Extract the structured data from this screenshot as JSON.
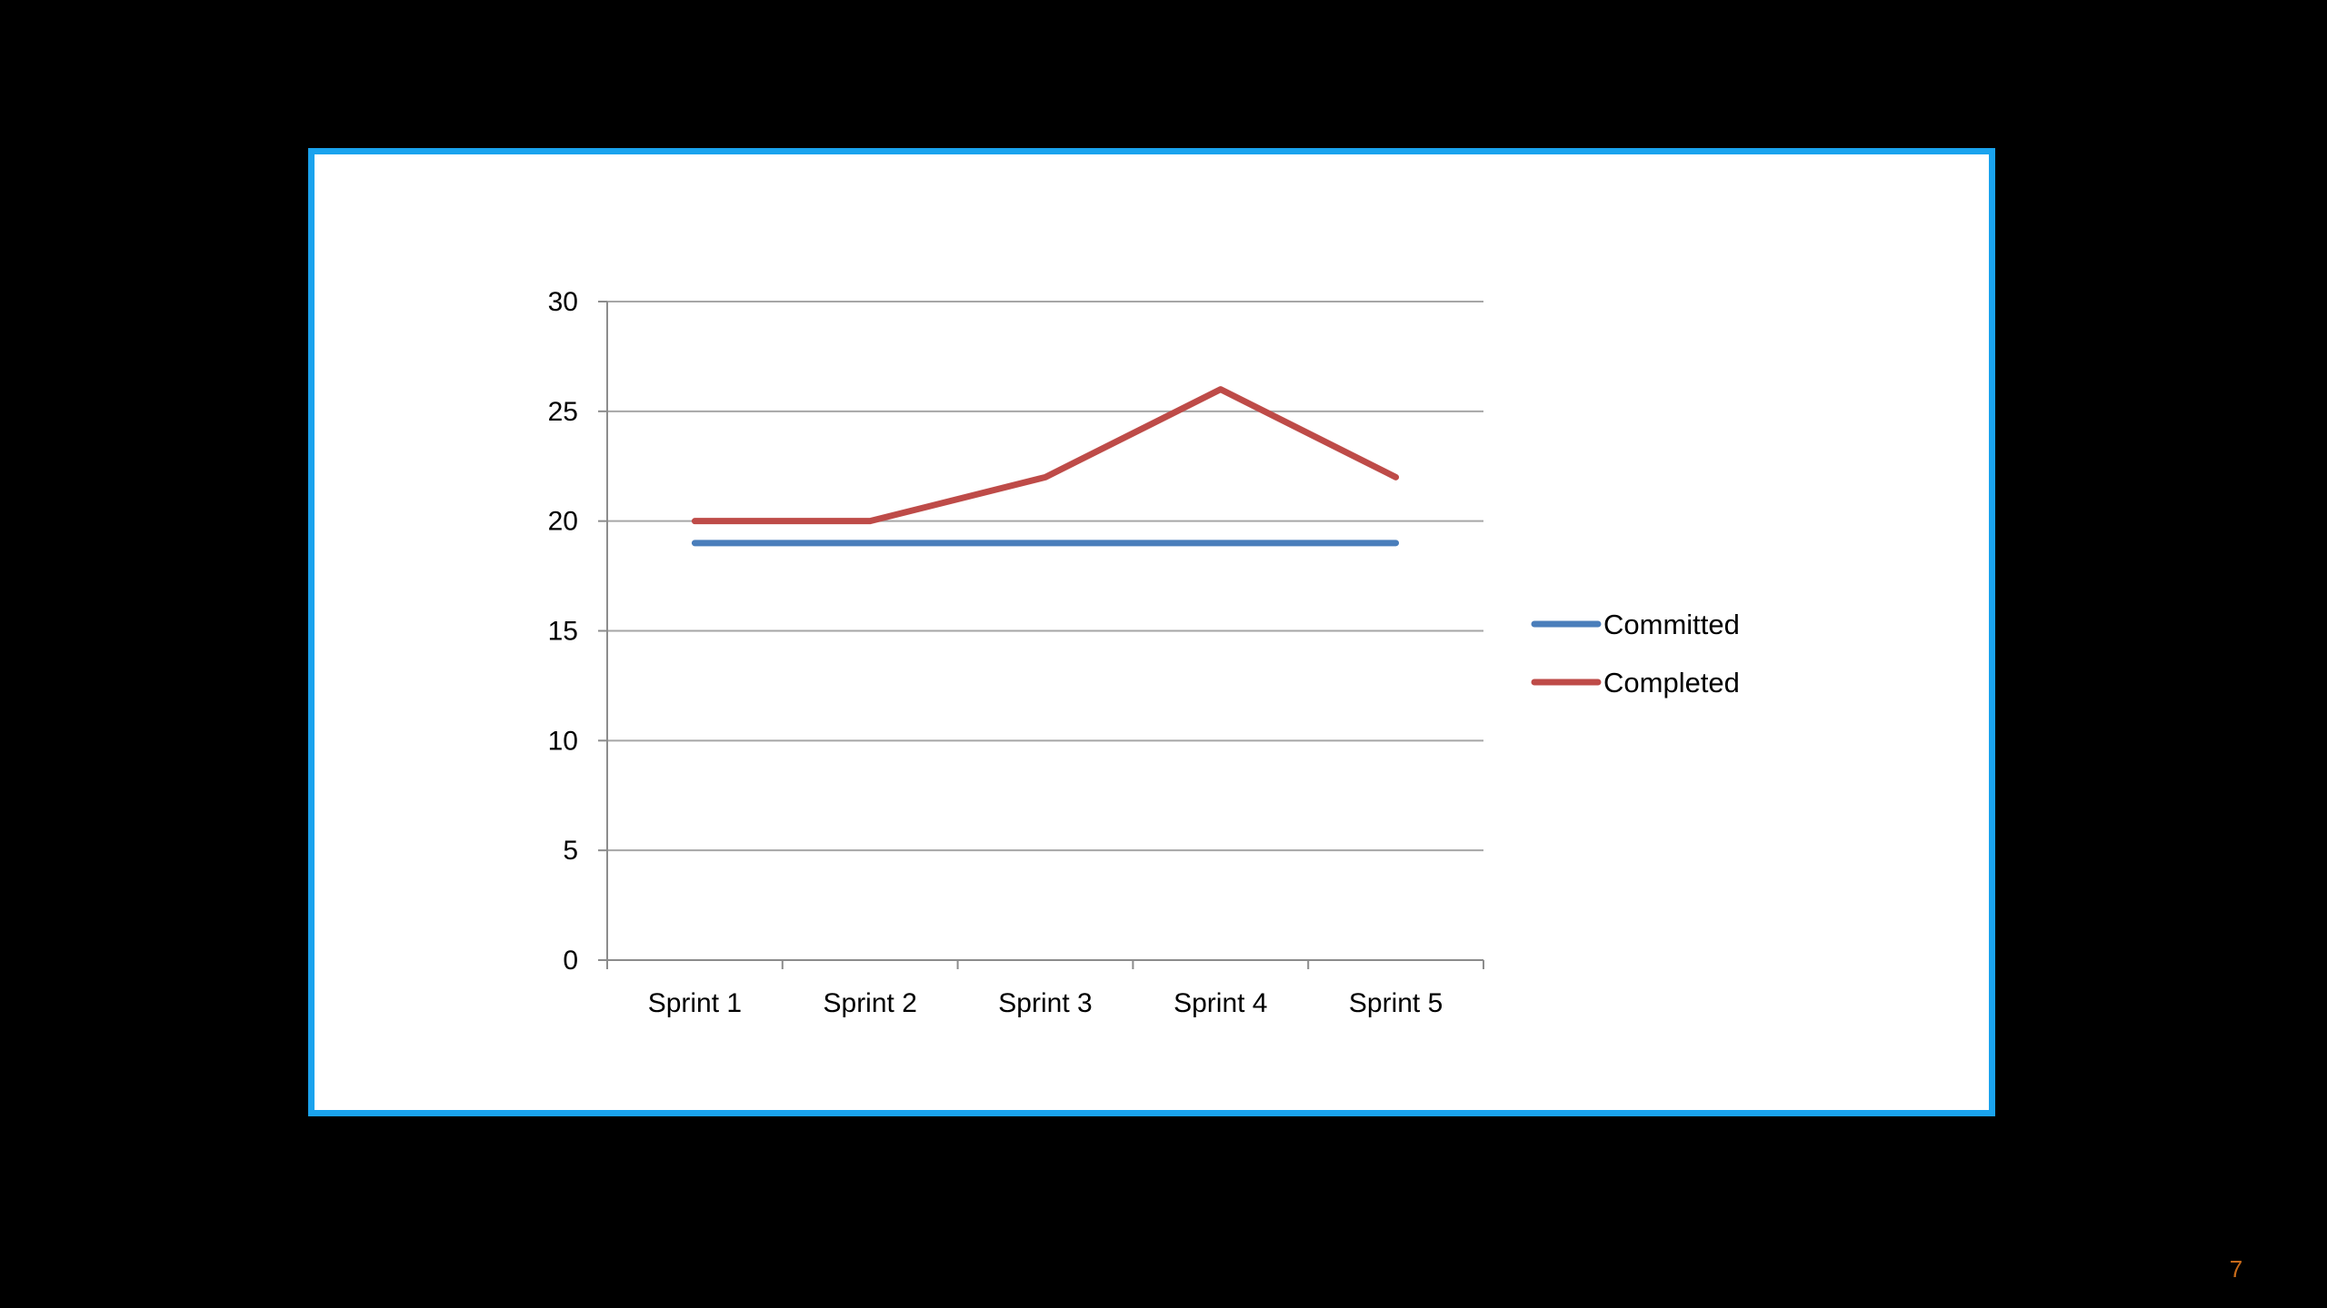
{
  "slide": {
    "page_number": "7",
    "frame_color": "#1aa3ee"
  },
  "chart_data": {
    "type": "line",
    "title": "",
    "xlabel": "",
    "ylabel": "",
    "categories": [
      "Sprint 1",
      "Sprint 2",
      "Sprint 3",
      "Sprint 4",
      "Sprint 5"
    ],
    "ylim": [
      0,
      30
    ],
    "yticks": [
      0,
      5,
      10,
      15,
      20,
      25,
      30
    ],
    "grid": true,
    "legend_position": "right",
    "series": [
      {
        "name": "Committed",
        "values": [
          19,
          19,
          19,
          19,
          19
        ],
        "color": "#4a7ebb"
      },
      {
        "name": "Completed",
        "values": [
          20,
          20,
          22,
          26,
          22
        ],
        "color": "#be4b48"
      }
    ]
  }
}
